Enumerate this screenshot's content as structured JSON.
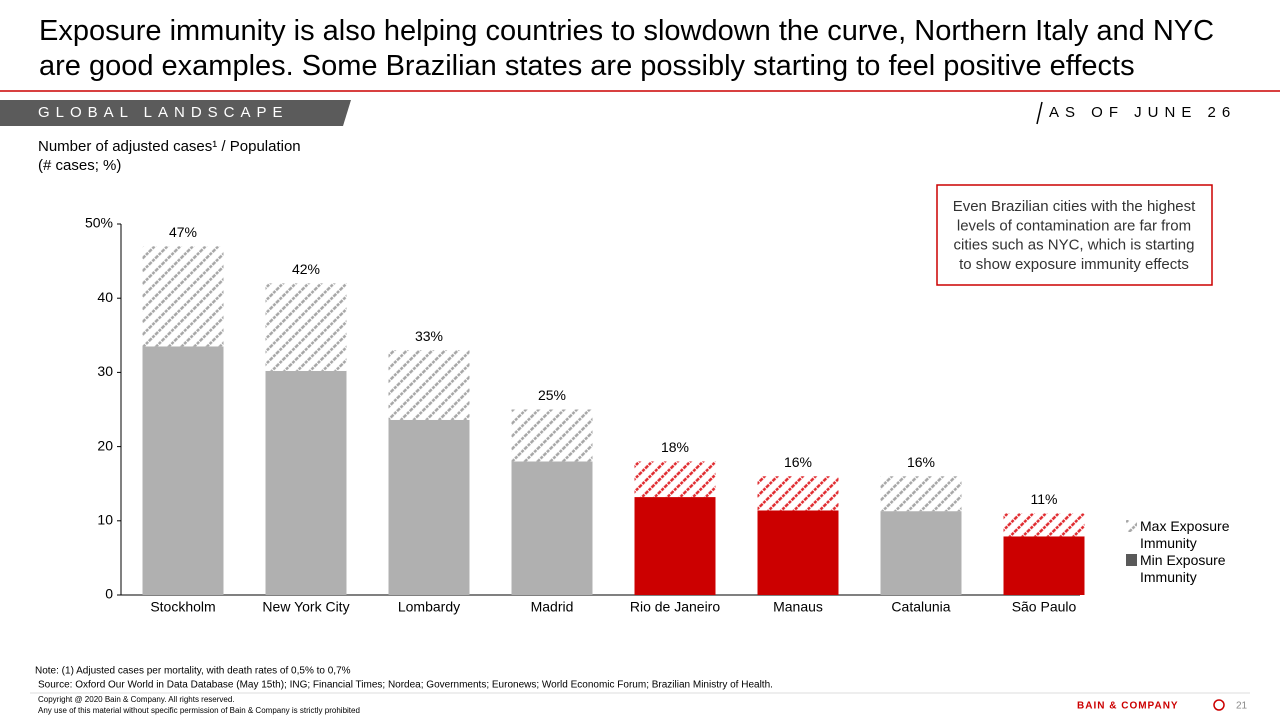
{
  "header": {
    "title": "Exposure immunity is also helping countries to slowdown the curve, Northern Italy and NYC are good examples. Some Brazilian states are possibly starting to feel positive effects",
    "section": "GLOBAL LANDSCAPE",
    "date": "AS OF JUNE 26"
  },
  "chart_data": {
    "type": "bar",
    "stacked": true,
    "subtitle": [
      "Number of adjusted cases¹ / Population",
      "(# cases; %)"
    ],
    "categories": [
      "Stockholm",
      "New York City",
      "Lombardy",
      "Madrid",
      "Rio de Janeiro",
      "Manaus",
      "Catalunia",
      "São Paulo"
    ],
    "series": [
      {
        "name": "Min Exposure Immunity",
        "color": "#595959",
        "values": [
          33.5,
          30.2,
          23.6,
          18,
          13.2,
          11.4,
          11.3,
          7.9
        ],
        "colors": [
          "#b0b0b0",
          "#b0b0b0",
          "#b0b0b0",
          "#b0b0b0",
          "#cc0000",
          "#cc0000",
          "#b0b0b0",
          "#cc0000"
        ]
      },
      {
        "name": "Max Exposure Immunity",
        "color": "#a6a6a6",
        "pattern": "hatch",
        "values": [
          13.5,
          11.8,
          9.4,
          7,
          4.8,
          4.6,
          4.7,
          3.1
        ],
        "colors": [
          "#a6a6a6",
          "#a6a6a6",
          "#a6a6a6",
          "#a6a6a6",
          "#e0292e",
          "#e0292e",
          "#a6a6a6",
          "#e0292e"
        ]
      }
    ],
    "totals": [
      47,
      42,
      33,
      25,
      18,
      16,
      16,
      11
    ],
    "total_labels": [
      "47%",
      "42%",
      "33%",
      "25%",
      "18%",
      "16%",
      "16%",
      "11%"
    ],
    "ylim": [
      0,
      50
    ],
    "yticks": [
      0,
      10,
      20,
      30,
      40,
      {
        "value": 50,
        "label": "50%"
      }
    ],
    "callout": [
      "Even Brazilian cities with the highest",
      "levels of contamination are far from",
      "cities such as NYC, which is starting",
      "to show exposure immunity effects"
    ]
  },
  "footer": {
    "note": "Note: (1) Adjusted cases per mortality, with death rates of 0,5% to 0,7%",
    "source": "Source: Oxford Our World in Data Database (May 15th); ING; Financial Times; Nordea; Governments; Euronews; World Economic Forum; Brazilian Ministry of Health.",
    "copyright": "Copyright @ 2020 Bain & Company. All rights reserved.",
    "permission": "Any use of this material without specific permission of Bain & Company is strictly prohibited",
    "brand": "BAIN & COMPANY",
    "page": "21"
  }
}
